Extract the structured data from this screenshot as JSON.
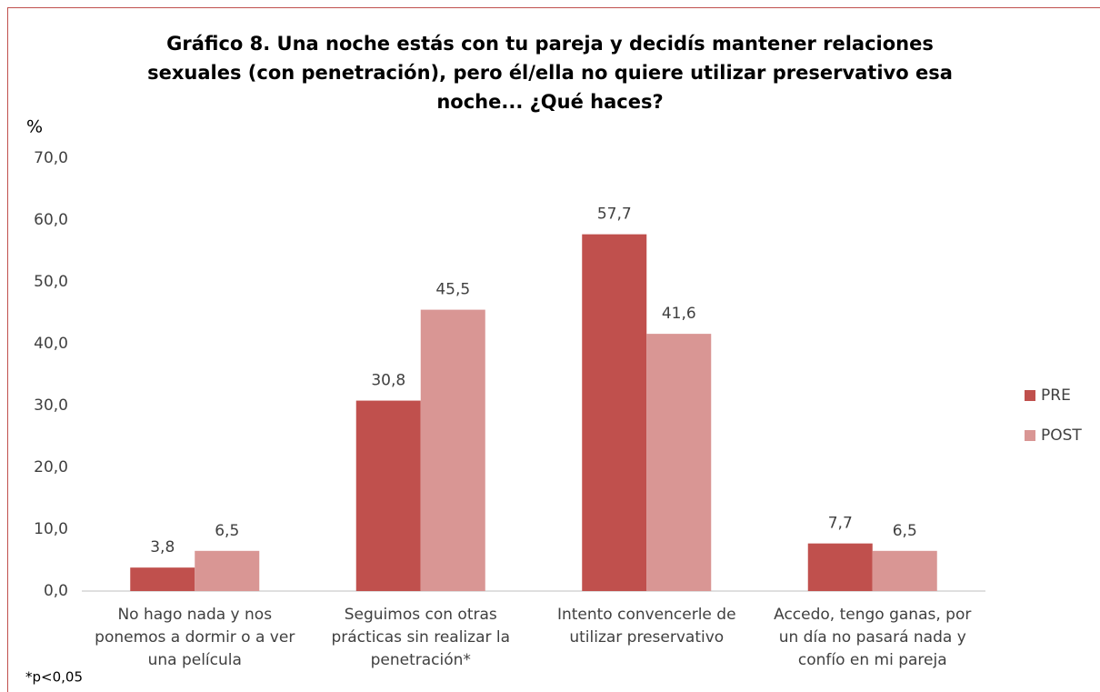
{
  "chart_data": {
    "type": "bar",
    "title": "Gráfico 8. Una noche estás con tu pareja y decidís mantener relaciones sexuales (con penetración), pero él/ella no quiere utilizar preservativo esa noche... ¿Qué haces?",
    "y_label": "%",
    "note": "*p<0,05",
    "categories": [
      "No hago nada y nos ponemos a dormir o a ver una película",
      "Seguimos con otras prácticas sin realizar la penetración*",
      "Intento convencerle de utilizar preservativo",
      "Accedo, tengo ganas, por un día no pasará nada y confío en mi pareja"
    ],
    "series": [
      {
        "name": "PRE",
        "color": "#c0504d",
        "values": [
          3.8,
          30.8,
          57.7,
          7.7
        ],
        "value_labels": [
          "3,8",
          "30,8",
          "57,7",
          "7,7"
        ]
      },
      {
        "name": "POST",
        "color": "#d99694",
        "values": [
          6.5,
          45.5,
          41.6,
          6.5
        ],
        "value_labels": [
          "6,5",
          "45,5",
          "41,6",
          "6,5"
        ]
      }
    ],
    "ylim": [
      0,
      70
    ],
    "yticks": [
      {
        "value": 0,
        "label": "0,0"
      },
      {
        "value": 10,
        "label": "10,0"
      },
      {
        "value": 20,
        "label": "20,0"
      },
      {
        "value": 30,
        "label": "30,0"
      },
      {
        "value": 40,
        "label": "40,0"
      },
      {
        "value": 50,
        "label": "50,0"
      },
      {
        "value": 60,
        "label": "60,0"
      },
      {
        "value": 70,
        "label": "70,0"
      }
    ],
    "grid": false,
    "legend": "right"
  }
}
